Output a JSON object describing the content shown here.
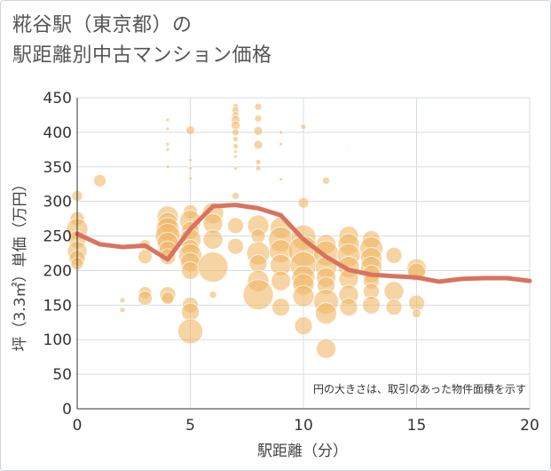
{
  "title_line1": "糀谷駅（東京都）の",
  "title_line2": "駅距離別中古マンション価格",
  "chart_data": {
    "type": "scatter",
    "title": "糀谷駅（東京都）の 駅距離別中古マンション価格",
    "xlabel": "駅距離（分）",
    "ylabel": "坪（3.3㎡）単価（万円）",
    "xlim": [
      0,
      20
    ],
    "ylim": [
      0,
      450
    ],
    "xticks": [
      0,
      5,
      10,
      15,
      20
    ],
    "yticks": [
      0,
      50,
      100,
      150,
      200,
      250,
      300,
      350,
      400,
      450
    ],
    "grid": true,
    "annotation": "円の大きさは、取引のあった物件面積を示す",
    "colors": {
      "points": "#f0b865",
      "line": "#d9735f",
      "grid": "#d5dce3"
    },
    "points": [
      {
        "x": 0,
        "y": 308,
        "s": 6
      },
      {
        "x": 0,
        "y": 275,
        "s": 8
      },
      {
        "x": 0,
        "y": 260,
        "s": 12
      },
      {
        "x": 0,
        "y": 245,
        "s": 10
      },
      {
        "x": 0,
        "y": 228,
        "s": 11
      },
      {
        "x": 0,
        "y": 218,
        "s": 9
      },
      {
        "x": 0,
        "y": 210,
        "s": 7
      },
      {
        "x": 1,
        "y": 330,
        "s": 7
      },
      {
        "x": 2,
        "y": 157,
        "s": 3
      },
      {
        "x": 2,
        "y": 143,
        "s": 3
      },
      {
        "x": 3,
        "y": 237,
        "s": 6
      },
      {
        "x": 3,
        "y": 220,
        "s": 8
      },
      {
        "x": 3,
        "y": 168,
        "s": 7
      },
      {
        "x": 3,
        "y": 160,
        "s": 8
      },
      {
        "x": 4,
        "y": 418,
        "s": 2
      },
      {
        "x": 4,
        "y": 405,
        "s": 2
      },
      {
        "x": 4,
        "y": 383,
        "s": 2
      },
      {
        "x": 4,
        "y": 375,
        "s": 2
      },
      {
        "x": 4,
        "y": 350,
        "s": 2
      },
      {
        "x": 4,
        "y": 278,
        "s": 12
      },
      {
        "x": 4,
        "y": 270,
        "s": 11
      },
      {
        "x": 4,
        "y": 260,
        "s": 13
      },
      {
        "x": 4,
        "y": 250,
        "s": 14
      },
      {
        "x": 4,
        "y": 240,
        "s": 12
      },
      {
        "x": 4,
        "y": 230,
        "s": 10
      },
      {
        "x": 4,
        "y": 220,
        "s": 9
      },
      {
        "x": 4,
        "y": 165,
        "s": 9
      },
      {
        "x": 4,
        "y": 160,
        "s": 7
      },
      {
        "x": 5,
        "y": 403,
        "s": 5
      },
      {
        "x": 5,
        "y": 360,
        "s": 2
      },
      {
        "x": 5,
        "y": 348,
        "s": 2
      },
      {
        "x": 5,
        "y": 333,
        "s": 2
      },
      {
        "x": 5,
        "y": 285,
        "s": 8
      },
      {
        "x": 5,
        "y": 272,
        "s": 12
      },
      {
        "x": 5,
        "y": 258,
        "s": 10
      },
      {
        "x": 5,
        "y": 245,
        "s": 12
      },
      {
        "x": 5,
        "y": 232,
        "s": 10
      },
      {
        "x": 5,
        "y": 222,
        "s": 13
      },
      {
        "x": 5,
        "y": 212,
        "s": 11
      },
      {
        "x": 5,
        "y": 200,
        "s": 10
      },
      {
        "x": 5,
        "y": 150,
        "s": 9
      },
      {
        "x": 5,
        "y": 140,
        "s": 10
      },
      {
        "x": 5,
        "y": 112,
        "s": 14
      },
      {
        "x": 6,
        "y": 283,
        "s": 12
      },
      {
        "x": 6,
        "y": 268,
        "s": 11
      },
      {
        "x": 6,
        "y": 245,
        "s": 11
      },
      {
        "x": 6,
        "y": 205,
        "s": 17
      },
      {
        "x": 6,
        "y": 165,
        "s": 4
      },
      {
        "x": 7,
        "y": 438,
        "s": 3
      },
      {
        "x": 7,
        "y": 432,
        "s": 4
      },
      {
        "x": 7,
        "y": 425,
        "s": 4
      },
      {
        "x": 7,
        "y": 418,
        "s": 5
      },
      {
        "x": 7,
        "y": 410,
        "s": 5
      },
      {
        "x": 7,
        "y": 400,
        "s": 4
      },
      {
        "x": 7,
        "y": 390,
        "s": 3
      },
      {
        "x": 7,
        "y": 380,
        "s": 3
      },
      {
        "x": 7,
        "y": 372,
        "s": 2
      },
      {
        "x": 7,
        "y": 365,
        "s": 2
      },
      {
        "x": 7,
        "y": 348,
        "s": 2
      },
      {
        "x": 7,
        "y": 308,
        "s": 4
      },
      {
        "x": 7,
        "y": 265,
        "s": 9
      },
      {
        "x": 7,
        "y": 235,
        "s": 9
      },
      {
        "x": 8,
        "y": 437,
        "s": 4
      },
      {
        "x": 8,
        "y": 420,
        "s": 4
      },
      {
        "x": 8,
        "y": 402,
        "s": 5
      },
      {
        "x": 8,
        "y": 382,
        "s": 5
      },
      {
        "x": 8,
        "y": 357,
        "s": 3
      },
      {
        "x": 8,
        "y": 348,
        "s": 3
      },
      {
        "x": 8,
        "y": 265,
        "s": 12
      },
      {
        "x": 8,
        "y": 250,
        "s": 8
      },
      {
        "x": 8,
        "y": 225,
        "s": 13
      },
      {
        "x": 8,
        "y": 210,
        "s": 10
      },
      {
        "x": 8,
        "y": 185,
        "s": 12
      },
      {
        "x": 8,
        "y": 165,
        "s": 17
      },
      {
        "x": 9,
        "y": 400,
        "s": 2
      },
      {
        "x": 9,
        "y": 383,
        "s": 2
      },
      {
        "x": 9,
        "y": 332,
        "s": 2
      },
      {
        "x": 9,
        "y": 262,
        "s": 12
      },
      {
        "x": 9,
        "y": 245,
        "s": 14
      },
      {
        "x": 9,
        "y": 228,
        "s": 13
      },
      {
        "x": 9,
        "y": 208,
        "s": 12
      },
      {
        "x": 9,
        "y": 185,
        "s": 11
      },
      {
        "x": 9,
        "y": 147,
        "s": 10
      },
      {
        "x": 10,
        "y": 408,
        "s": 3
      },
      {
        "x": 10,
        "y": 298,
        "s": 6
      },
      {
        "x": 10,
        "y": 248,
        "s": 14
      },
      {
        "x": 10,
        "y": 228,
        "s": 17
      },
      {
        "x": 10,
        "y": 208,
        "s": 15
      },
      {
        "x": 10,
        "y": 190,
        "s": 13
      },
      {
        "x": 10,
        "y": 180,
        "s": 12
      },
      {
        "x": 10,
        "y": 163,
        "s": 12
      },
      {
        "x": 10,
        "y": 120,
        "s": 10
      },
      {
        "x": 11,
        "y": 330,
        "s": 4
      },
      {
        "x": 11,
        "y": 238,
        "s": 11
      },
      {
        "x": 11,
        "y": 225,
        "s": 14
      },
      {
        "x": 11,
        "y": 205,
        "s": 12
      },
      {
        "x": 11,
        "y": 190,
        "s": 11
      },
      {
        "x": 11,
        "y": 178,
        "s": 10
      },
      {
        "x": 11,
        "y": 155,
        "s": 14
      },
      {
        "x": 11,
        "y": 138,
        "s": 12
      },
      {
        "x": 11,
        "y": 87,
        "s": 11
      },
      {
        "x": 12,
        "y": 376,
        "s": 1
      },
      {
        "x": 12,
        "y": 250,
        "s": 11
      },
      {
        "x": 12,
        "y": 238,
        "s": 12
      },
      {
        "x": 12,
        "y": 222,
        "s": 13
      },
      {
        "x": 12,
        "y": 205,
        "s": 12
      },
      {
        "x": 12,
        "y": 188,
        "s": 11
      },
      {
        "x": 12,
        "y": 165,
        "s": 11
      },
      {
        "x": 12,
        "y": 147,
        "s": 10
      },
      {
        "x": 13,
        "y": 245,
        "s": 10
      },
      {
        "x": 13,
        "y": 232,
        "s": 13
      },
      {
        "x": 13,
        "y": 218,
        "s": 12
      },
      {
        "x": 13,
        "y": 205,
        "s": 12
      },
      {
        "x": 13,
        "y": 195,
        "s": 10
      },
      {
        "x": 13,
        "y": 185,
        "s": 9
      },
      {
        "x": 13,
        "y": 170,
        "s": 9
      },
      {
        "x": 13,
        "y": 150,
        "s": 10
      },
      {
        "x": 14,
        "y": 222,
        "s": 9
      },
      {
        "x": 14,
        "y": 170,
        "s": 11
      },
      {
        "x": 14,
        "y": 147,
        "s": 9
      },
      {
        "x": 15,
        "y": 203,
        "s": 11
      },
      {
        "x": 15,
        "y": 198,
        "s": 10
      },
      {
        "x": 15,
        "y": 153,
        "s": 9
      },
      {
        "x": 15,
        "y": 138,
        "s": 5
      }
    ],
    "trend": [
      {
        "x": 0,
        "y": 253
      },
      {
        "x": 1,
        "y": 238
      },
      {
        "x": 2,
        "y": 234
      },
      {
        "x": 3,
        "y": 236
      },
      {
        "x": 4,
        "y": 216
      },
      {
        "x": 5,
        "y": 260
      },
      {
        "x": 6,
        "y": 293
      },
      {
        "x": 7,
        "y": 295
      },
      {
        "x": 8,
        "y": 290
      },
      {
        "x": 9,
        "y": 280
      },
      {
        "x": 10,
        "y": 245
      },
      {
        "x": 11,
        "y": 220
      },
      {
        "x": 12,
        "y": 201
      },
      {
        "x": 13,
        "y": 194
      },
      {
        "x": 14,
        "y": 192
      },
      {
        "x": 15,
        "y": 190
      },
      {
        "x": 16,
        "y": 184
      },
      {
        "x": 17,
        "y": 188
      },
      {
        "x": 18,
        "y": 189
      },
      {
        "x": 19,
        "y": 189
      },
      {
        "x": 20,
        "y": 185
      }
    ]
  }
}
